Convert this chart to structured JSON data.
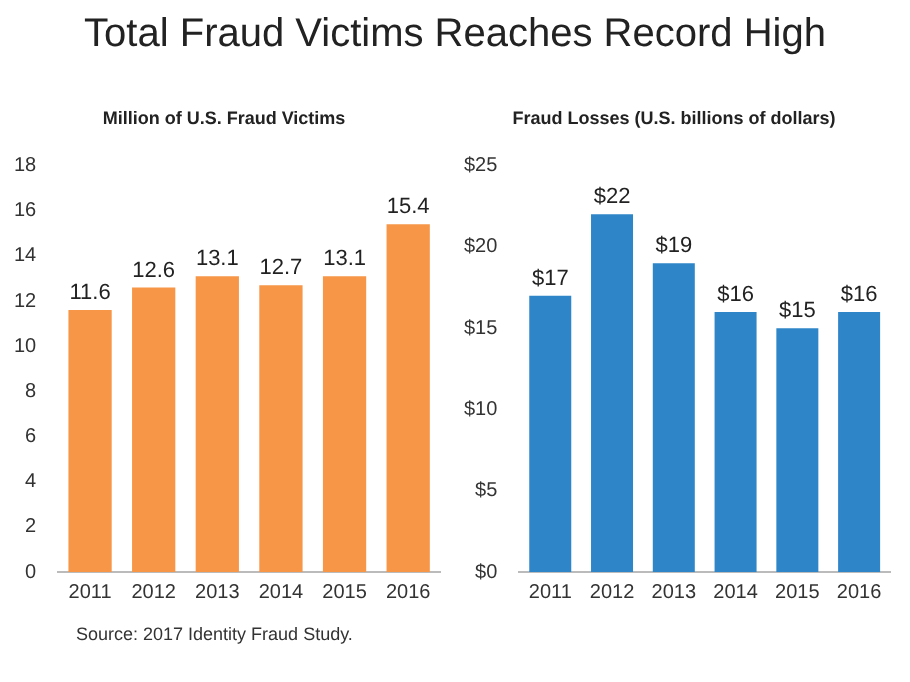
{
  "chart_data": [
    {
      "type": "bar",
      "title": "Total Fraud Victims Reaches Record High",
      "subtitle": "Million of U.S. Fraud Victims",
      "categories": [
        "2011",
        "2012",
        "2013",
        "2014",
        "2015",
        "2016"
      ],
      "values": [
        11.6,
        12.6,
        13.1,
        12.7,
        13.1,
        15.4
      ],
      "color": "#f79646",
      "ylim": [
        0,
        18
      ],
      "yticks": [
        0,
        2,
        4,
        6,
        8,
        10,
        12,
        14,
        16,
        18
      ],
      "grid": false,
      "data_labels": true,
      "annotations": [
        "Source: 2017 Identity Fraud Study."
      ]
    },
    {
      "type": "bar",
      "title": "Fraud Losses (U.S. billions of dollars)",
      "categories": [
        "2011",
        "2012",
        "2013",
        "2014",
        "2015",
        "2016"
      ],
      "values": [
        17,
        22,
        19,
        16,
        15,
        16
      ],
      "value_labels": [
        "$17",
        "$22",
        "$19",
        "$16",
        "$15",
        "$16"
      ],
      "color": "#2e86c8",
      "ylim": [
        0,
        25
      ],
      "yticks": [
        {
          "value": 0,
          "label": "$0"
        },
        {
          "value": 5,
          "label": "$5"
        },
        {
          "value": 10,
          "label": "$10"
        },
        {
          "value": 15,
          "label": "$15"
        },
        {
          "value": 20,
          "label": "$20"
        },
        {
          "value": 25,
          "label": "$25"
        }
      ],
      "grid": false
    }
  ]
}
